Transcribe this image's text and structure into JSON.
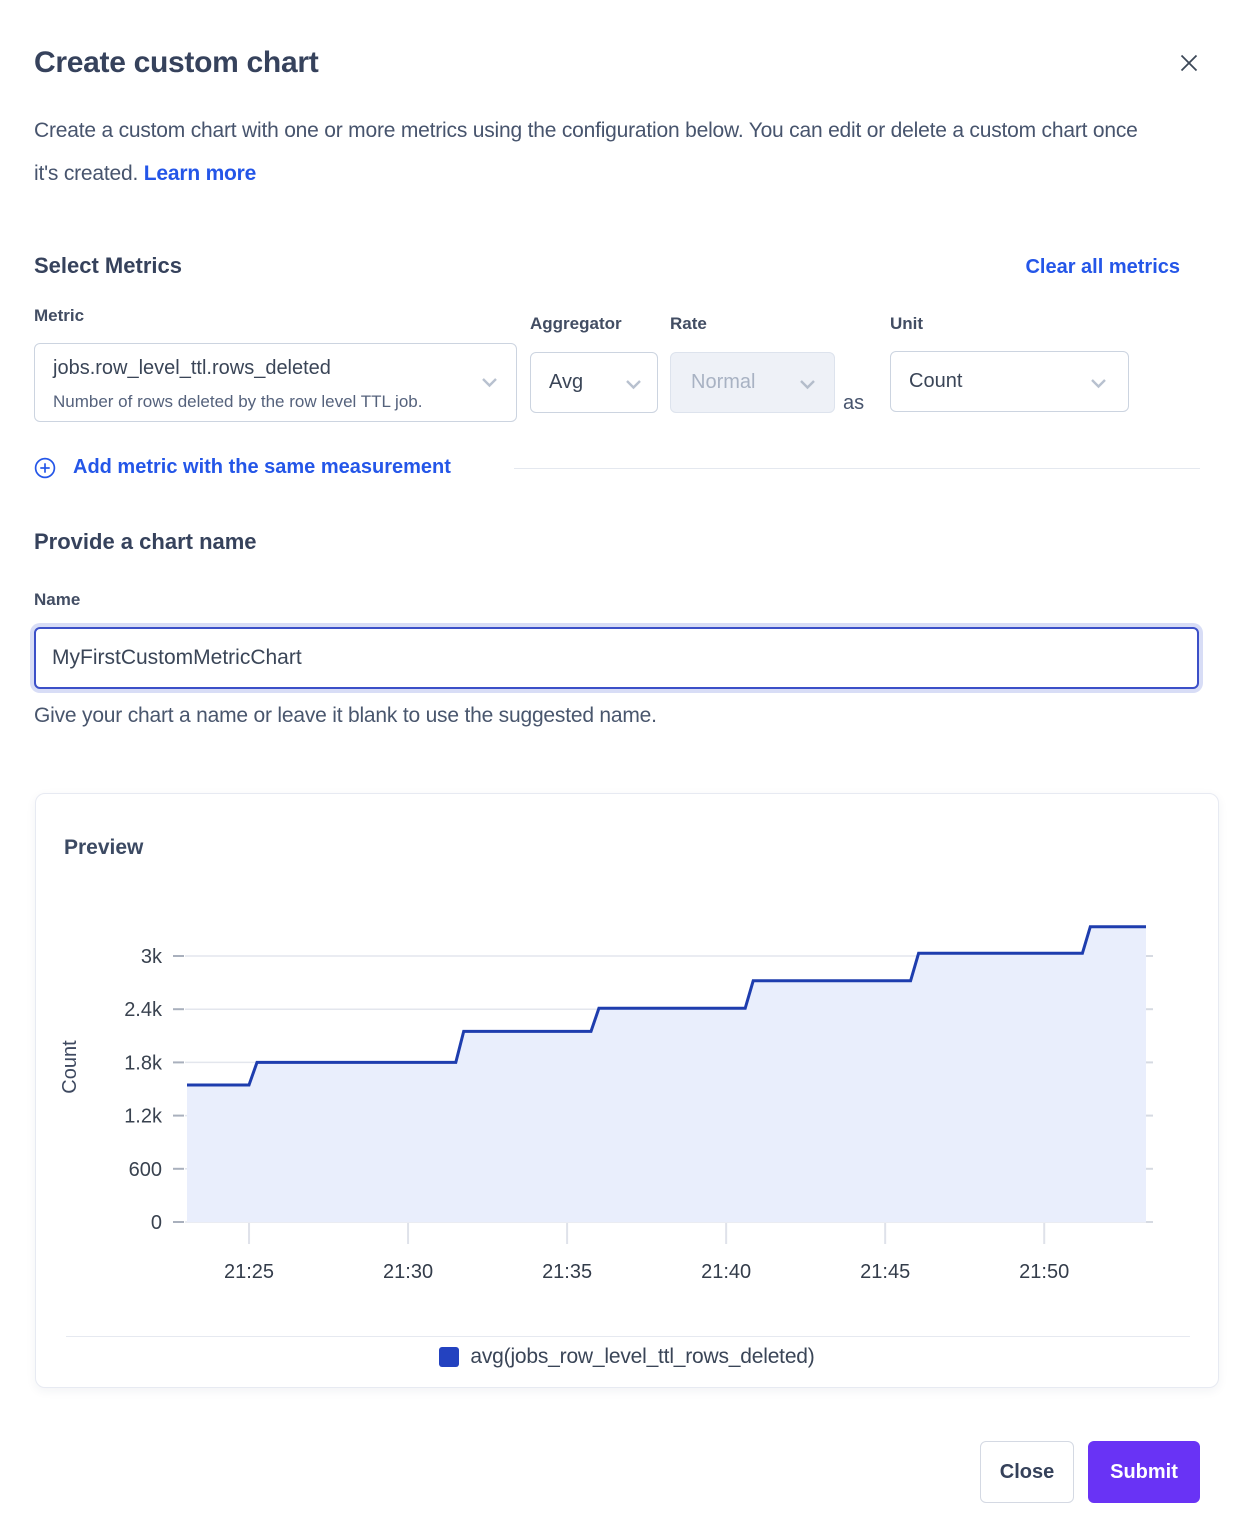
{
  "dialog": {
    "title": "Create custom chart",
    "description_line1": "Create a custom chart with one or more metrics using the configuration below. You can edit or delete a custom chart once",
    "description_line2": "it's created.",
    "learn_more": "Learn more"
  },
  "metrics_section": {
    "heading": "Select Metrics",
    "clear_all": "Clear all metrics",
    "metric_label": "Metric",
    "metric_value": "jobs.row_level_ttl.rows_deleted",
    "metric_description": "Number of rows deleted by the row level TTL job.",
    "aggregator_label": "Aggregator",
    "aggregator_value": "Avg",
    "rate_label": "Rate",
    "rate_value": "Normal",
    "as_text": "as",
    "unit_label": "Unit",
    "unit_value": "Count",
    "add_metric": "Add metric with the same measurement"
  },
  "name_section": {
    "heading": "Provide a chart name",
    "label": "Name",
    "value": "MyFirstCustomMetricChart",
    "helper": "Give your chart a name or leave it blank to use the suggested name."
  },
  "preview": {
    "heading": "Preview",
    "legend": "avg(jobs_row_level_ttl_rows_deleted)"
  },
  "footer": {
    "close": "Close",
    "submit": "Submit"
  },
  "colors": {
    "link": "#2456e8",
    "line": "#1e3dae",
    "fill": "#e9eefc",
    "legend_swatch": "#2342c0",
    "submit_bg": "#6933f5",
    "grid": "#e3e6ed"
  },
  "chart_data": {
    "type": "area",
    "step": true,
    "title": "Preview",
    "ylabel": "Count",
    "xlabel": "",
    "legend_position": "bottom",
    "x_unit": "minutes after 21:00",
    "x_range": [
      23.05,
      53.2
    ],
    "ylim": [
      0,
      3430
    ],
    "x_ticks": [
      {
        "t": 25,
        "label": "21:25"
      },
      {
        "t": 30,
        "label": "21:30"
      },
      {
        "t": 35,
        "label": "21:35"
      },
      {
        "t": 40,
        "label": "21:40"
      },
      {
        "t": 45,
        "label": "21:45"
      },
      {
        "t": 50,
        "label": "21:50"
      }
    ],
    "y_ticks": [
      {
        "v": 0,
        "label": "0"
      },
      {
        "v": 600,
        "label": "600"
      },
      {
        "v": 1200,
        "label": "1.2k"
      },
      {
        "v": 1800,
        "label": "1.8k"
      },
      {
        "v": 2400,
        "label": "2.4k"
      },
      {
        "v": 3000,
        "label": "3k"
      }
    ],
    "series": [
      {
        "name": "avg(jobs_row_level_ttl_rows_deleted)",
        "color": "#1e3dae",
        "levels": [
          [
            23.05,
            25.0,
            1545
          ],
          [
            25.25,
            31.5,
            1800
          ],
          [
            31.75,
            35.75,
            2150
          ],
          [
            36.0,
            40.6,
            2410
          ],
          [
            40.85,
            45.8,
            2720
          ],
          [
            46.05,
            51.2,
            3030
          ],
          [
            51.45,
            53.2,
            3330
          ]
        ]
      }
    ]
  }
}
